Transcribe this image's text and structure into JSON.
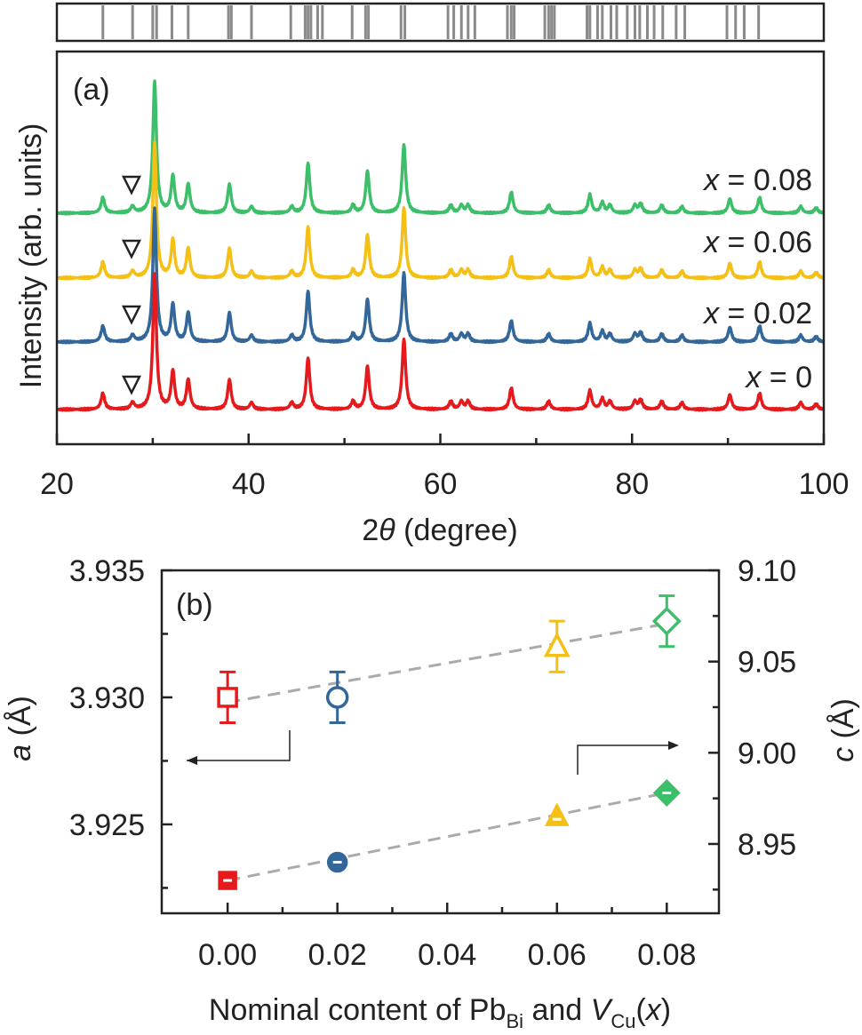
{
  "panel_a": {
    "label": "(a)",
    "xlabel_theta": "θ",
    "xlabel_two": "2",
    "xlabel_rest": " (degree)",
    "ylabel": "Intensity (arb. units)",
    "x_ticks": [
      "20",
      "40",
      "60",
      "80",
      "100"
    ],
    "x_label_var": "x",
    "curve_labels": [
      " = 0.08",
      " = 0.06",
      " = 0.02",
      " = 0"
    ],
    "impurity_marker": "∇"
  },
  "panel_b": {
    "label": "(b)",
    "left_axis_var": "a",
    "left_axis_unit": " (Å)",
    "right_axis_var": "c",
    "right_axis_unit": " (Å)",
    "left_ticks": [
      "3.925",
      "3.930",
      "3.935"
    ],
    "right_ticks": [
      "8.95",
      "9.00",
      "9.05",
      "9.10"
    ],
    "x_ticks": [
      "0.00",
      "0.02",
      "0.04",
      "0.06",
      "0.08"
    ],
    "xlabel_main": "Nominal content of Pb",
    "xlabel_sub1": "Bi",
    "xlabel_and": " and ",
    "xlabel_v": "V",
    "xlabel_sub2": "Cu",
    "xlabel_end1": "(",
    "xlabel_x": "x",
    "xlabel_end2": ")"
  },
  "colors": {
    "x0": "#e41a1c",
    "x002": "#336699",
    "x006": "#f5c016",
    "x008": "#3dbf6a",
    "fit": "#aaaaaa",
    "refline": "#8a8a8a"
  },
  "chart_data": [
    {
      "type": "line",
      "title": "",
      "xlabel": "2θ (degree)",
      "ylabel": "Intensity (arb. units)",
      "xlim": [
        20,
        100
      ],
      "reference_ticks_2theta": [
        24.8,
        27.9,
        30.0,
        30.4,
        32.0,
        33.7,
        37.9,
        38.2,
        40.3,
        44.4,
        45.9,
        46.2,
        46.5,
        47.2,
        47.7,
        50.8,
        52.2,
        52.5,
        55.9,
        56.3,
        60.8,
        61.4,
        62.2,
        62.9,
        63.6,
        67.0,
        67.4,
        67.7,
        70.9,
        71.3,
        71.6,
        71.9,
        75.3,
        75.6,
        76.4,
        76.9,
        77.8,
        78.4,
        79.5,
        80.3,
        80.8,
        81.6,
        82.3,
        83.2,
        84.6,
        85.5,
        89.9,
        90.8,
        91.7,
        93.2
      ],
      "peaks": {
        "two_theta": [
          24.8,
          27.9,
          30.2,
          32.1,
          33.7,
          38.0,
          40.3,
          44.5,
          46.2,
          50.9,
          52.4,
          56.2,
          61.1,
          62.2,
          62.9,
          67.4,
          71.3,
          75.6,
          76.9,
          77.7,
          80.3,
          80.9,
          83.1,
          85.2,
          90.2,
          93.3,
          97.6,
          99.2
        ],
        "relative_intensity": [
          0.12,
          0.05,
          1.0,
          0.28,
          0.22,
          0.22,
          0.05,
          0.05,
          0.38,
          0.06,
          0.32,
          0.52,
          0.06,
          0.06,
          0.06,
          0.16,
          0.06,
          0.14,
          0.08,
          0.06,
          0.06,
          0.07,
          0.06,
          0.05,
          0.11,
          0.12,
          0.05,
          0.04
        ]
      },
      "impurity_peak_2theta": 27.9,
      "series": [
        {
          "name": "x = 0.08",
          "x": 0.08
        },
        {
          "name": "x = 0.06",
          "x": 0.06
        },
        {
          "name": "x = 0.02",
          "x": 0.02
        },
        {
          "name": "x = 0",
          "x": 0
        }
      ]
    },
    {
      "type": "scatter",
      "title": "",
      "xlabel": "Nominal content of PbBi and VCu(x)",
      "ylabel": "a (Å)",
      "y2label": "c (Å)",
      "xlim": [
        -0.012,
        0.0895
      ],
      "ylim": [
        3.9215,
        3.935
      ],
      "y2lim": [
        8.912,
        9.1
      ],
      "x": [
        0.0,
        0.02,
        0.06,
        0.08
      ],
      "series": [
        {
          "axis": "left",
          "values": [
            3.93,
            3.93,
            3.932,
            3.933
          ],
          "errors": [
            0.001,
            0.001,
            0.001,
            0.001
          ],
          "markers": [
            "square",
            "circle",
            "triangle",
            "diamond"
          ],
          "filled": false
        },
        {
          "axis": "right",
          "values": [
            8.93,
            8.94,
            8.965,
            8.978
          ],
          "markers": [
            "square",
            "circle",
            "triangle",
            "diamond"
          ],
          "filled": true
        }
      ],
      "fit_left": [
        [
          0.0,
          3.9298
        ],
        [
          0.08,
          3.9329
        ]
      ],
      "fit_right": [
        [
          0.0,
          8.93
        ],
        [
          0.08,
          8.978
        ]
      ]
    }
  ]
}
